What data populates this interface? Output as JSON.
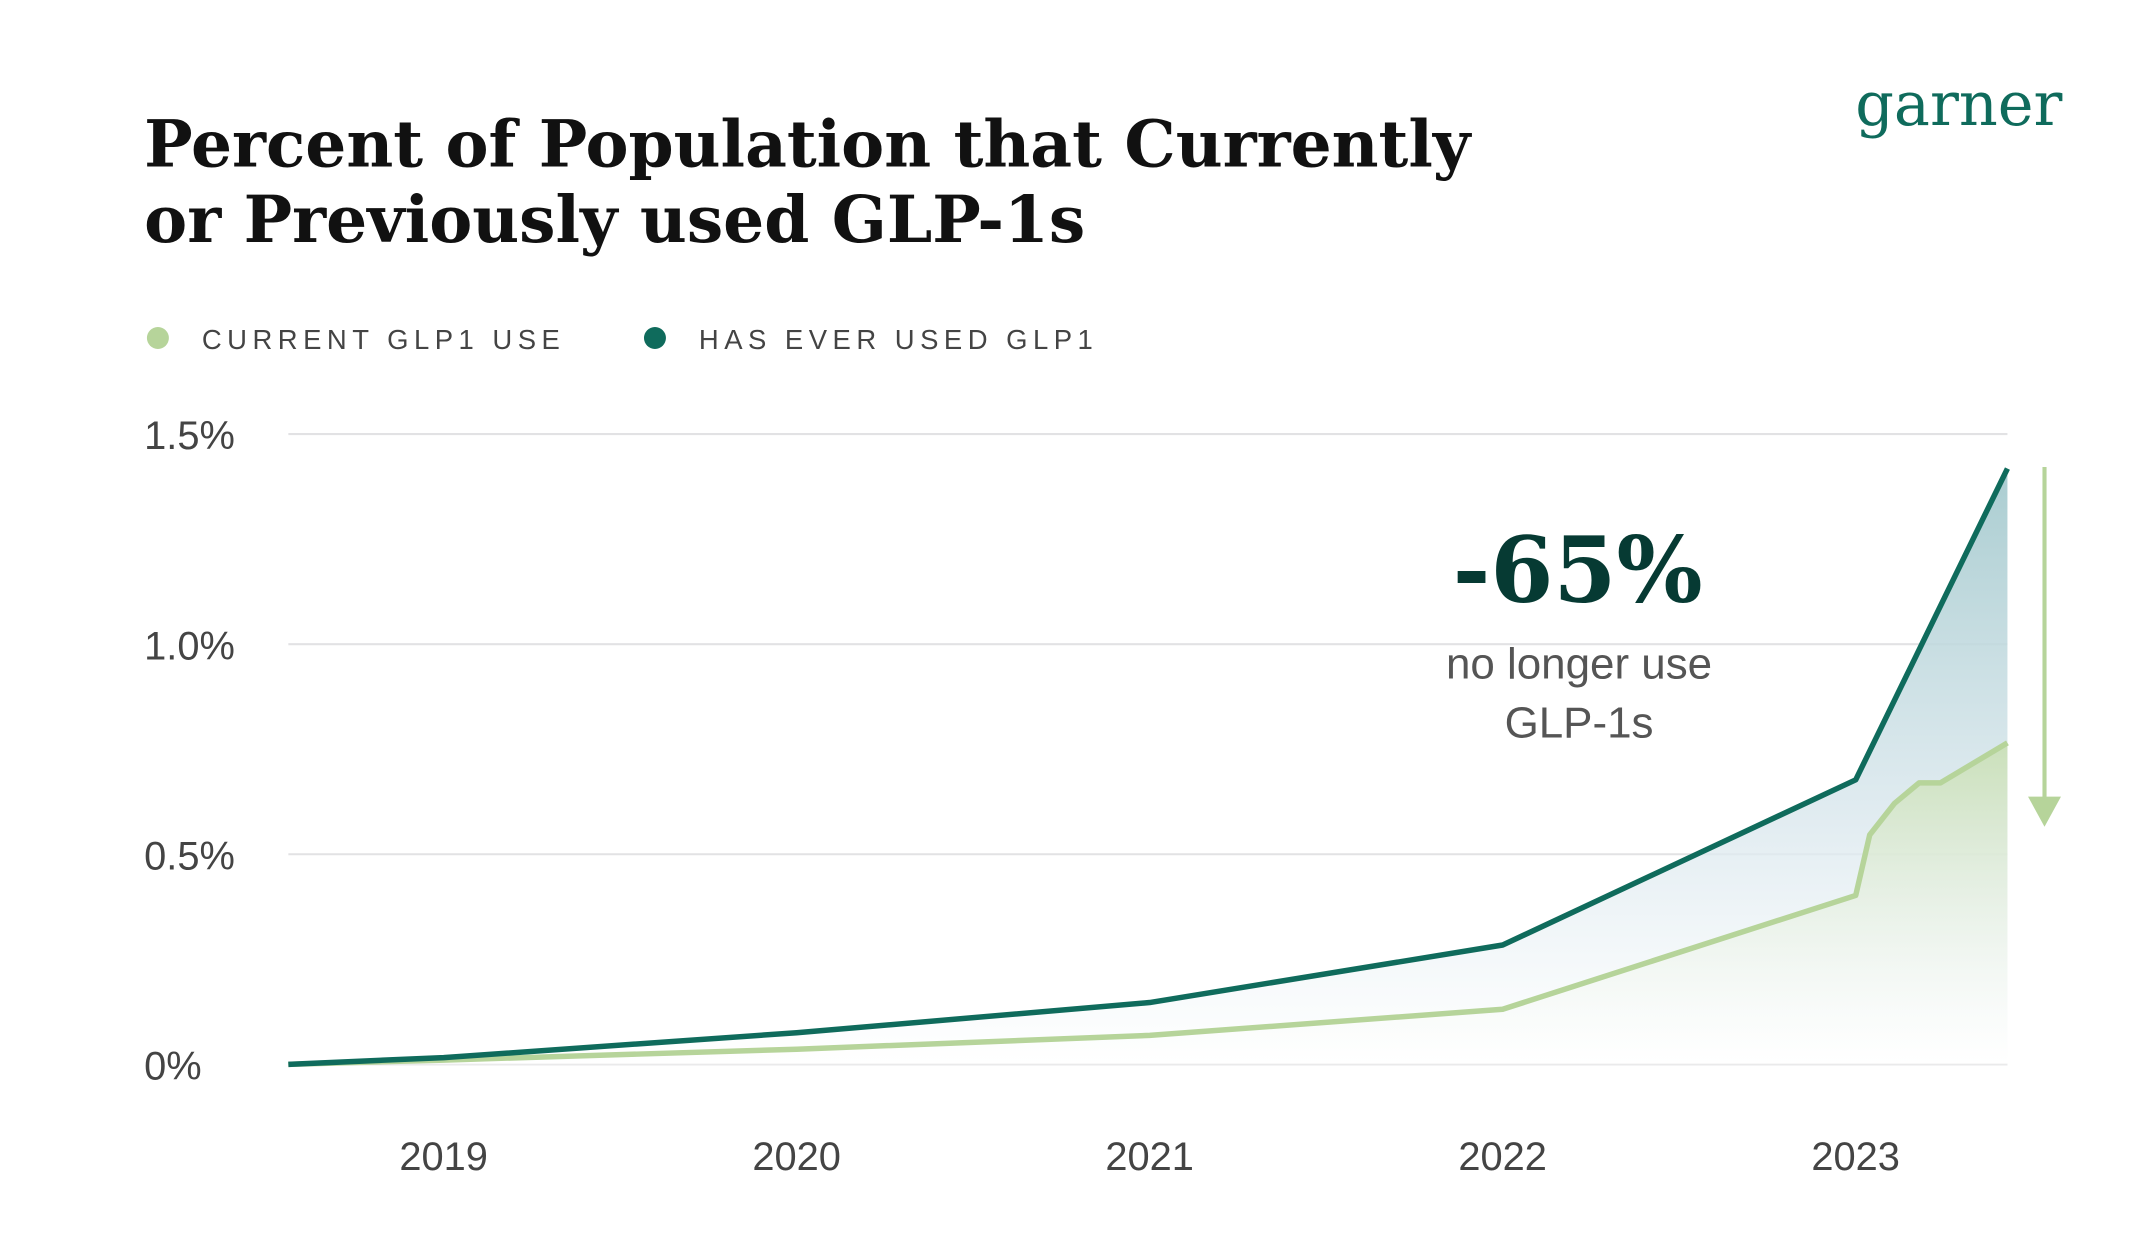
{
  "brand": {
    "logo_text": "garner"
  },
  "chart_data": {
    "type": "line",
    "title": "Percent of Population that Currently or Previously used GLP-1s",
    "title_lines": [
      "Percent of Population that Currently",
      "or Previously used GLP-1s"
    ],
    "xlabel": "",
    "ylabel": "",
    "x_ticks": [
      "2019",
      "2020",
      "2021",
      "2022",
      "2023"
    ],
    "x_tick_values": [
      2019,
      2020,
      2021,
      2022,
      2023
    ],
    "xlim": [
      2018.56,
      2023.43
    ],
    "y_ticks": [
      "0%",
      "0.5%",
      "1.0%",
      "1.5%"
    ],
    "y_tick_values": [
      0,
      0.5,
      1.0,
      1.5
    ],
    "ylim": [
      0,
      1.5
    ],
    "grid": "horizontal",
    "legend_position": "top-left",
    "series": [
      {
        "name": "HAS EVER USED GLP1",
        "color": "#0f6b5c",
        "x": [
          2018.56,
          2019,
          2020,
          2021,
          2022,
          2023,
          2023.43
        ],
        "values": [
          0,
          0.016,
          0.075,
          0.147,
          0.284,
          0.677,
          1.418
        ]
      },
      {
        "name": "CURRENT GLP1 USE",
        "color": "#b6d49a",
        "x": [
          2018.56,
          2019,
          2020,
          2021,
          2022,
          2023,
          2023.04,
          2023.11,
          2023.18,
          2023.24,
          2023.43
        ],
        "values": [
          0,
          0.01,
          0.036,
          0.069,
          0.131,
          0.402,
          0.546,
          0.621,
          0.67,
          0.67,
          0.765
        ]
      }
    ],
    "annotation": {
      "value": "-65%",
      "text_lines": [
        "no longer use",
        "GLP-1s"
      ],
      "arrow_color": "#b6d49a",
      "value_color": "#063a33"
    }
  }
}
